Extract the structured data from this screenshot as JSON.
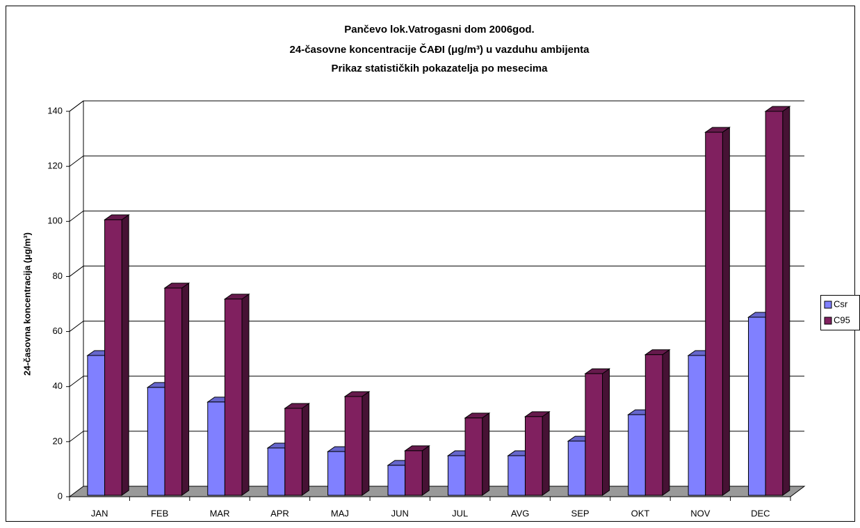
{
  "chart_data": {
    "type": "bar3d",
    "title": [
      "Pančevo  lok.Vatrogasni dom  2006god.",
      "24-časovne koncentracije ČAĐI (μg/m³) u vazduhu ambijenta",
      "Prikaz statističkih pokazatelja po mesecima"
    ],
    "y_label": "24-časovna koncentracija (μg/m³)",
    "categories": [
      "JAN",
      "FEB",
      "MAR",
      "APR",
      "MAJ",
      "JUN",
      "JUL",
      "AVG",
      "SEP",
      "OKT",
      "NOV",
      "DEC"
    ],
    "series": [
      {
        "name": "Csr",
        "color": "#8080ff",
        "values": [
          51.3,
          39.7,
          34.4,
          17.7,
          16.4,
          11.4,
          14.9,
          14.9,
          20.2,
          29.8,
          51.3,
          65.2
        ]
      },
      {
        "name": "C95",
        "color": "#80205f",
        "values": [
          100.6,
          75.8,
          71.8,
          32.1,
          36.4,
          16.7,
          28.6,
          29.1,
          44.7,
          51.6,
          132.4,
          140
        ]
      }
    ],
    "ylim": [
      0,
      140
    ],
    "yticks": [
      0,
      20,
      40,
      60,
      80,
      100,
      120,
      140
    ],
    "grid": true,
    "legend": "right"
  }
}
